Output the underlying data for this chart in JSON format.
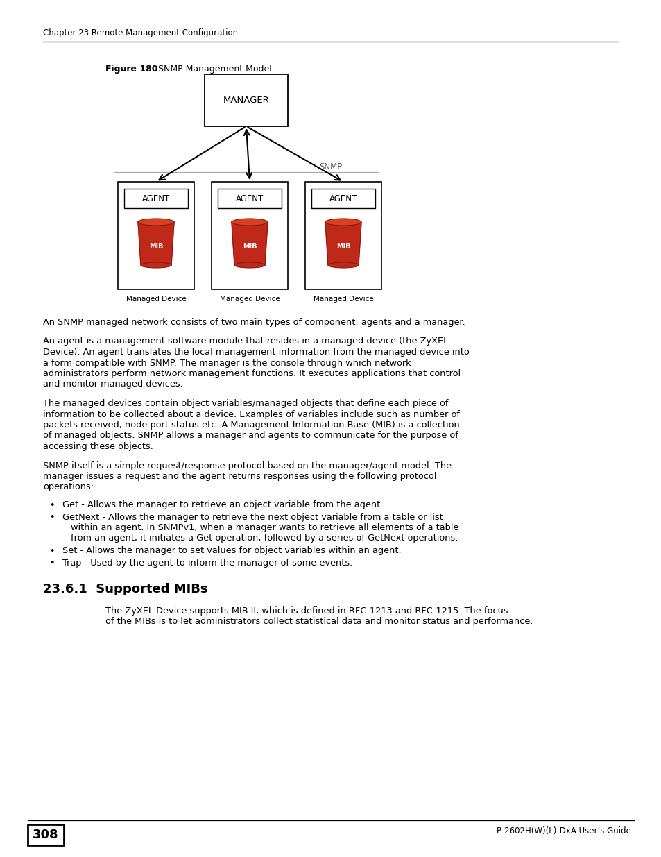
{
  "page_header": "Chapter 23 Remote Management Configuration",
  "figure_label_bold": "Figure 180",
  "figure_label_normal": "SNMP Management Model",
  "manager_label": "MANAGER",
  "agent_label": "AGENT",
  "mib_label": "MIB",
  "snmp_label": "SNMP",
  "managed_device_label": "Managed Device",
  "page_number": "308",
  "footer_right": "P-2602H(W)(L)-DxA User’s Guide",
  "section_heading": "23.6.1  Supported MIBs",
  "p1": "An SNMP managed network consists of two main types of component: agents and a manager.",
  "p2": [
    "An agent is a management software module that resides in a managed device (the ZyXEL",
    "Device). An agent translates the local management information from the managed device into",
    "a form compatible with SNMP. The manager is the console through which network",
    "administrators perform network management functions. It executes applications that control",
    "and monitor managed devices."
  ],
  "p3": [
    "The managed devices contain object variables/managed objects that define each piece of",
    "information to be collected about a device. Examples of variables include such as number of",
    "packets received, node port status etc. A Management Information Base (MIB) is a collection",
    "of managed objects. SNMP allows a manager and agents to communicate for the purpose of",
    "accessing these objects."
  ],
  "p4": [
    "SNMP itself is a simple request/response protocol based on the manager/agent model. The",
    "manager issues a request and the agent returns responses using the following protocol",
    "operations:"
  ],
  "bullets": [
    [
      "Get - Allows the manager to retrieve an object variable from the agent."
    ],
    [
      "GetNext - Allows the manager to retrieve the next object variable from a table or list",
      "within an agent. In SNMPv1, when a manager wants to retrieve all elements of a table",
      "from an agent, it initiates a Get operation, followed by a series of GetNext operations."
    ],
    [
      "Set - Allows the manager to set values for object variables within an agent."
    ],
    [
      "Trap - Used by the agent to inform the manager of some events."
    ]
  ],
  "section_text": [
    "The ZyXEL Device supports MIB II, which is defined in RFC-1213 and RFC-1215. The focus",
    "of the MIBs is to let administrators collect statistical data and monitor status and performance."
  ],
  "bg_color": "#ffffff",
  "text_color": "#000000",
  "mib_red": "#c0291a",
  "mib_dark": "#8b1a0e",
  "mib_top": "#d94020"
}
